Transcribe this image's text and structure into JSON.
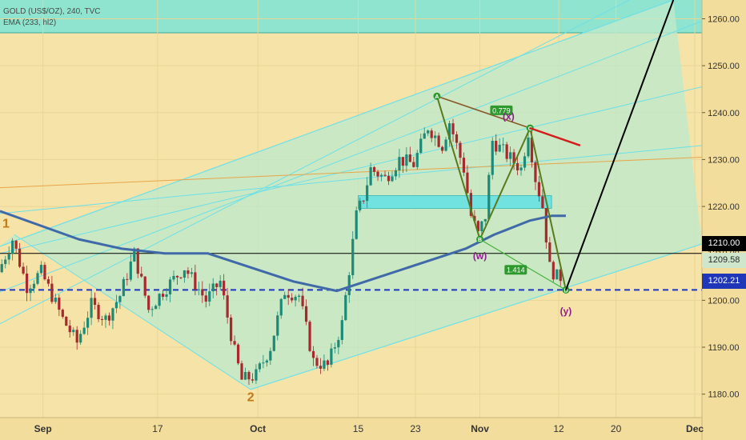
{
  "header": {
    "title": "GOLD (US$/OZ), 240, TVC",
    "indicator": "EMA (233, hl2)"
  },
  "price_tags": {
    "last": "1210.00",
    "ema": "1209.58",
    "support": "1202.21"
  },
  "colors": {
    "background": "#f6e3a8",
    "channel_fill": "#bfe9c9",
    "channel_lines": "#6ee0e8",
    "top_band": "#8fe4cf",
    "zone": "#72e2e0",
    "ema": "#3f69a8",
    "candle_up": "#1d8a78",
    "candle_down": "#a8282e",
    "support_line": "#2036b8",
    "pattern": "#44b13a",
    "pattern_label": "#8e1d8e",
    "forecast": "#000000",
    "resistance": "#d41e1e"
  },
  "chart_data": {
    "type": "candlestick",
    "instrument": "GOLD (US$/OZ)",
    "timeframe": "240",
    "source": "TVC",
    "ylim": [
      1175,
      1264
    ],
    "yticks": [
      1180,
      1190,
      1200,
      1210,
      1220,
      1230,
      1240,
      1250,
      1260
    ],
    "ytick_labels": [
      "1180.00",
      "1190.00",
      "1200.00",
      "1210.00",
      "1220.00",
      "1230.00",
      "1240.00",
      "1250.00",
      "1260.00"
    ],
    "x_range": [
      "2018-08-26",
      "2018-12-02"
    ],
    "x_ticks": [
      {
        "date": "2018-09-01",
        "label": "Sep"
      },
      {
        "date": "2018-09-17",
        "label": "17"
      },
      {
        "date": "2018-10-01",
        "label": "Oct"
      },
      {
        "date": "2018-10-15",
        "label": "15"
      },
      {
        "date": "2018-10-23",
        "label": "23"
      },
      {
        "date": "2018-11-01",
        "label": "Nov"
      },
      {
        "date": "2018-11-12",
        "label": "12"
      },
      {
        "date": "2018-11-20",
        "label": "20"
      },
      {
        "date": "2018-12-01",
        "label": "Dec"
      }
    ],
    "price_path": [
      [
        "2018-08-26",
        1206
      ],
      [
        "2018-08-28",
        1213
      ],
      [
        "2018-08-30",
        1203
      ],
      [
        "2018-09-01",
        1206
      ],
      [
        "2018-09-04",
        1196
      ],
      [
        "2018-09-06",
        1191
      ],
      [
        "2018-09-08",
        1199
      ],
      [
        "2018-09-10",
        1196
      ],
      [
        "2018-09-12",
        1201
      ],
      [
        "2018-09-14",
        1210
      ],
      [
        "2018-09-16",
        1198
      ],
      [
        "2018-09-18",
        1202
      ],
      [
        "2018-09-21",
        1207
      ],
      [
        "2018-09-24",
        1200
      ],
      [
        "2018-09-26",
        1204
      ],
      [
        "2018-09-28",
        1189
      ],
      [
        "2018-09-29",
        1183
      ],
      [
        "2018-10-01",
        1184
      ],
      [
        "2018-10-03",
        1190
      ],
      [
        "2018-10-05",
        1202
      ],
      [
        "2018-10-07",
        1201
      ],
      [
        "2018-10-09",
        1187
      ],
      [
        "2018-10-11",
        1186
      ],
      [
        "2018-10-13",
        1195
      ],
      [
        "2018-10-15",
        1218
      ],
      [
        "2018-10-16",
        1222
      ],
      [
        "2018-10-17",
        1228
      ],
      [
        "2018-10-19",
        1226
      ],
      [
        "2018-10-21",
        1230
      ],
      [
        "2018-10-23",
        1229
      ],
      [
        "2018-10-25",
        1237
      ],
      [
        "2018-10-27",
        1233
      ],
      [
        "2018-10-28",
        1238
      ],
      [
        "2018-10-30",
        1228
      ],
      [
        "2018-10-31",
        1218
      ],
      [
        "2018-11-01",
        1214
      ],
      [
        "2018-11-02",
        1218
      ],
      [
        "2018-11-03",
        1234
      ],
      [
        "2018-11-05",
        1231
      ],
      [
        "2018-11-07",
        1228
      ],
      [
        "2018-11-08",
        1236
      ],
      [
        "2018-11-09",
        1226
      ],
      [
        "2018-11-10",
        1220
      ],
      [
        "2018-11-11",
        1207
      ],
      [
        "2018-11-12",
        1205
      ]
    ],
    "ema": {
      "name": "EMA (233, hl2)",
      "points": [
        [
          "2018-08-26",
          1219
        ],
        [
          "2018-09-06",
          1213
        ],
        [
          "2018-09-12",
          1211
        ],
        [
          "2018-09-18",
          1210
        ],
        [
          "2018-09-24",
          1210
        ],
        [
          "2018-09-30",
          1207
        ],
        [
          "2018-10-06",
          1204
        ],
        [
          "2018-10-12",
          1202
        ],
        [
          "2018-10-14",
          1203
        ],
        [
          "2018-10-18",
          1205
        ],
        [
          "2018-10-24",
          1208
        ],
        [
          "2018-10-30",
          1211
        ],
        [
          "2018-11-03",
          1214
        ],
        [
          "2018-11-08",
          1217
        ],
        [
          "2018-11-11",
          1218
        ],
        [
          "2018-11-13",
          1218
        ]
      ]
    },
    "horizontal_lines": [
      {
        "price": 1210.0,
        "style": "solid",
        "color": "#000000"
      },
      {
        "price": 1202.21,
        "style": "dashed",
        "color": "#2036b8"
      }
    ],
    "channel": {
      "lines": [
        {
          "from": [
            "2018-08-26",
            1195.0
          ],
          "to": [
            "2018-12-02",
            1272.0
          ]
        },
        {
          "from": [
            "2018-08-26",
            1201.8
          ],
          "to": [
            "2018-12-02",
            1259.5
          ]
        },
        {
          "from": [
            "2018-08-26",
            1210.0
          ],
          "to": [
            "2018-12-02",
            1245.5
          ]
        },
        {
          "from": [
            "2018-08-26",
            1218.5
          ],
          "to": [
            "2018-12-02",
            1233.0
          ]
        }
      ],
      "outer_top": [
        [
          "2018-08-26",
          1211.5
        ],
        [
          "2018-11-28",
          1264.0
        ]
      ],
      "outer_left": [
        [
          "2018-08-28",
          1214.0
        ],
        [
          "2018-09-30",
          1181.0
        ]
      ],
      "outer_bottom": [
        [
          "2018-09-30",
          1181.0
        ],
        [
          "2018-12-02",
          1212.0
        ]
      ]
    },
    "top_band": [
      1257.0,
      1264.0
    ],
    "zones": [
      {
        "from": "2018-10-15",
        "to": "2018-11-11",
        "low": 1219.6,
        "high": 1222.3
      }
    ],
    "trend_line": {
      "from": [
        "2018-08-26",
        1224.0
      ],
      "to": [
        "2018-12-02",
        1230.5
      ],
      "color": "#e8a54a"
    },
    "harmonic_pattern": {
      "points": [
        {
          "label": "A",
          "date": "2018-10-26",
          "price": 1243.5
        },
        {
          "label": "B",
          "date": "2018-11-01",
          "price": 1213.0
        },
        {
          "label": "C",
          "date": "2018-11-08",
          "price": 1236.7
        },
        {
          "label": "D",
          "date": "2018-11-13",
          "price": 1202.2
        }
      ],
      "ratios": [
        {
          "value": "0.779",
          "date": "2018-11-04",
          "price": 1240.5
        },
        {
          "value": "1.414",
          "date": "2018-11-06",
          "price": 1206.5
        }
      ]
    },
    "wave_labels": [
      {
        "label": "1",
        "date": "2018-08-26",
        "price": 1215.5,
        "color": "#c17a1a"
      },
      {
        "label": "2",
        "date": "2018-09-30",
        "price": 1178.5,
        "color": "#c17a1a"
      },
      {
        "label": "(w)",
        "date": "2018-11-01",
        "price": 1208.8,
        "color": "#8e1d8e"
      },
      {
        "label": "(x)",
        "date": "2018-11-05",
        "price": 1238.5,
        "color": "#8e1d8e"
      },
      {
        "label": "(y)",
        "date": "2018-11-13",
        "price": 1197.0,
        "color": "#8e1d8e"
      }
    ],
    "resistance_line": {
      "from": [
        "2018-11-08",
        1236.7
      ],
      "to": [
        "2018-11-15",
        1233.0
      ],
      "color": "#d41e1e"
    },
    "forecast_line": {
      "from": [
        "2018-11-13",
        1202.2
      ],
      "to": [
        "2018-11-28",
        1264.0
      ],
      "color": "#000000"
    }
  }
}
